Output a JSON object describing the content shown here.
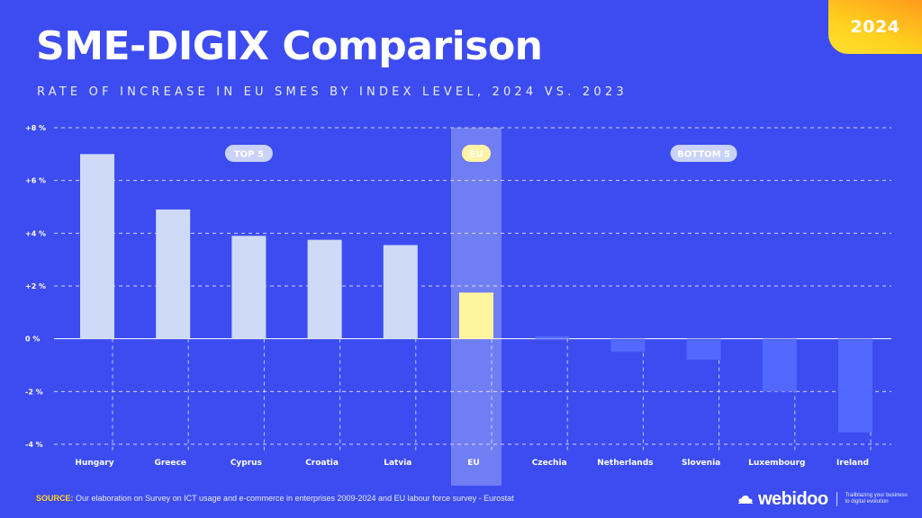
{
  "badge": {
    "year": "2024"
  },
  "header": {
    "title": "SME-DIGIX Comparison",
    "subtitle": "RATE OF INCREASE IN EU SMES BY INDEX LEVEL, 2024 VS. 2023"
  },
  "footer": {
    "source_label": "SOURCE:",
    "source_text": "Our elaboration on Survey on ICT usage and e-commerce in enterprises 2009-2024 and EU labour force survey - Eurostat",
    "brand": "webidoo",
    "tagline_1": "Trailblazing your business",
    "tagline_2": "to digital evolution"
  },
  "colors": {
    "background": "#3c4cf0",
    "top_bar": "#cfdaf8",
    "eu_bar": "#fff59e",
    "eu_band": "#9aa8f8",
    "bottom_bar": "#5268ff",
    "pill": "#c9d2fb",
    "accent": "#ffd21f"
  },
  "chart_data": {
    "type": "bar",
    "title": "",
    "xlabel": "",
    "ylabel": "",
    "ylim": [
      -4,
      8
    ],
    "yticks": [
      -4,
      -2,
      0,
      2,
      4,
      6,
      8
    ],
    "ytick_labels": [
      "-4 %",
      "-2 %",
      "0 %",
      "+2 %",
      "+4 %",
      "+6 %",
      "+8 %"
    ],
    "grid": true,
    "categories": [
      "Hungary",
      "Greece",
      "Cyprus",
      "Croatia",
      "Latvia",
      "EU",
      "Czechia",
      "Netherlands",
      "Slovenia",
      "Luxembourg",
      "Ireland"
    ],
    "values": [
      7.0,
      4.9,
      3.9,
      3.75,
      3.55,
      1.75,
      0.1,
      -0.5,
      -0.8,
      -2.0,
      -3.55
    ],
    "groups": [
      {
        "label": "TOP 5",
        "start": 0,
        "end": 4
      },
      {
        "label": "EU",
        "start": 5,
        "end": 5
      },
      {
        "label": "BOTTOM 5",
        "start": 6,
        "end": 10
      }
    ]
  }
}
